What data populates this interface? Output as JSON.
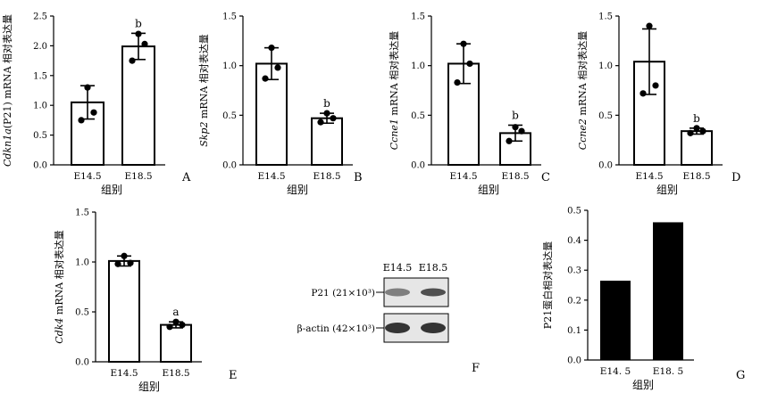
{
  "colors": {
    "ink": "#000000",
    "bar_fill": "#ffffff",
    "solid_bar": "#000000",
    "blot": "#2a2a2a"
  },
  "panels": [
    {
      "letter": "A",
      "type": "bar",
      "ylabel_italic": "Cdkn1a",
      "ylabel_rest": "(P21) mRNA 相对表达量",
      "xlabel": "组别",
      "ylim": [
        0,
        2.5
      ],
      "yticks": [
        "0.0",
        "0.5",
        "1.0",
        "1.5",
        "2.0",
        "2.5"
      ],
      "yticks_values": [
        0,
        0.5,
        1.0,
        1.5,
        2.0,
        2.5
      ],
      "categories": [
        "E14.5",
        "E18.5"
      ],
      "values": [
        1.05,
        1.99
      ],
      "errors": [
        0.28,
        0.22
      ],
      "points": [
        [
          1.3,
          0.75,
          0.88
        ],
        [
          2.2,
          1.75,
          2.03
        ]
      ],
      "sig": [
        "",
        "b"
      ]
    },
    {
      "letter": "B",
      "type": "bar",
      "ylabel_italic": "Skp2",
      "ylabel_rest": " mRNA 相对表达量",
      "xlabel": "组别",
      "ylim": [
        0,
        1.5
      ],
      "yticks": [
        "0.0",
        "0.5",
        "1.0",
        "1.5"
      ],
      "yticks_values": [
        0,
        0.5,
        1.0,
        1.5
      ],
      "categories": [
        "E14.5",
        "E18.5"
      ],
      "values": [
        1.02,
        0.47
      ],
      "errors": [
        0.16,
        0.05
      ],
      "points": [
        [
          1.18,
          0.87,
          0.98
        ],
        [
          0.52,
          0.43,
          0.47
        ]
      ],
      "sig": [
        "",
        "b"
      ]
    },
    {
      "letter": "C",
      "type": "bar",
      "ylabel_italic": "Ccne1",
      "ylabel_rest": " mRNA 相对表达量",
      "xlabel": "组别",
      "ylim": [
        0,
        1.5
      ],
      "yticks": [
        "0.0",
        "0.5",
        "1.0",
        "1.5"
      ],
      "yticks_values": [
        0,
        0.5,
        1.0,
        1.5
      ],
      "categories": [
        "E14.5",
        "E18.5"
      ],
      "values": [
        1.02,
        0.32
      ],
      "errors": [
        0.2,
        0.08
      ],
      "points": [
        [
          1.22,
          0.83,
          1.02
        ],
        [
          0.38,
          0.24,
          0.34
        ]
      ],
      "sig": [
        "",
        "b"
      ]
    },
    {
      "letter": "D",
      "type": "bar",
      "ylabel_italic": "Ccne2",
      "ylabel_rest": " mRNA 相对表达量",
      "xlabel": "组别",
      "ylim": [
        0,
        1.5
      ],
      "yticks": [
        "0.0",
        "0.5",
        "1.0",
        "1.5"
      ],
      "yticks_values": [
        0,
        0.5,
        1.0,
        1.5
      ],
      "categories": [
        "E14.5",
        "E18.5"
      ],
      "values": [
        1.04,
        0.34
      ],
      "errors": [
        0.33,
        0.03
      ],
      "points": [
        [
          1.4,
          0.72,
          0.8
        ],
        [
          0.37,
          0.32,
          0.34
        ]
      ],
      "sig": [
        "",
        "b"
      ]
    },
    {
      "letter": "E",
      "type": "bar",
      "ylabel_italic": "Cdk4",
      "ylabel_rest": " mRNA 相对表达量",
      "xlabel": "组别",
      "ylim": [
        0,
        1.5
      ],
      "yticks": [
        "0.0",
        "0.5",
        "1.0",
        "1.5"
      ],
      "yticks_values": [
        0,
        0.5,
        1.0,
        1.5
      ],
      "categories": [
        "E14.5",
        "E18.5"
      ],
      "values": [
        1.01,
        0.37
      ],
      "errors": [
        0.05,
        0.03
      ],
      "points": [
        [
          1.06,
          0.98,
          0.99
        ],
        [
          0.4,
          0.35,
          0.37
        ]
      ],
      "sig": [
        "",
        "a"
      ]
    },
    {
      "letter": "F",
      "type": "blot",
      "lanes": [
        "E14.5",
        "E18.5"
      ],
      "rows": [
        "P21 (21×10³)",
        "β-actin (42×10³)"
      ]
    },
    {
      "letter": "G",
      "type": "bar",
      "solid": true,
      "ylabel_italic": "",
      "ylabel_rest": "P21蛋白相对表达量",
      "xlabel": "组别",
      "ylim": [
        0,
        0.5
      ],
      "yticks": [
        "0.0",
        "0.1",
        "0.2",
        "0.3",
        "0.4",
        "0.5"
      ],
      "yticks_values": [
        0,
        0.1,
        0.2,
        0.3,
        0.4,
        0.5
      ],
      "categories": [
        "E14. 5",
        "E18. 5"
      ],
      "values": [
        0.265,
        0.46
      ],
      "errors": [],
      "points": [],
      "sig": [
        "",
        ""
      ]
    }
  ],
  "chart_data": [
    {
      "type": "bar",
      "categories": [
        "E14.5",
        "E18.5"
      ],
      "values": [
        1.05,
        1.99
      ],
      "ylabel": "Cdkn1a(P21) mRNA 相对表达量",
      "xlabel": "组别",
      "ylim": [
        0,
        2.5
      ]
    },
    {
      "type": "bar",
      "categories": [
        "E14.5",
        "E18.5"
      ],
      "values": [
        1.02,
        0.47
      ],
      "ylabel": "Skp2 mRNA 相对表达量",
      "xlabel": "组别",
      "ylim": [
        0,
        1.5
      ]
    },
    {
      "type": "bar",
      "categories": [
        "E14.5",
        "E18.5"
      ],
      "values": [
        1.02,
        0.32
      ],
      "ylabel": "Ccne1 mRNA 相对表达量",
      "xlabel": "组别",
      "ylim": [
        0,
        1.5
      ]
    },
    {
      "type": "bar",
      "categories": [
        "E14.5",
        "E18.5"
      ],
      "values": [
        1.04,
        0.34
      ],
      "ylabel": "Ccne2 mRNA 相对表达量",
      "xlabel": "组别",
      "ylim": [
        0,
        1.5
      ]
    },
    {
      "type": "bar",
      "categories": [
        "E14.5",
        "E18.5"
      ],
      "values": [
        1.01,
        0.37
      ],
      "ylabel": "Cdk4 mRNA 相对表达量",
      "xlabel": "组别",
      "ylim": [
        0,
        1.5
      ]
    },
    {
      "type": "bar",
      "categories": [
        "E14. 5",
        "E18. 5"
      ],
      "values": [
        0.265,
        0.46
      ],
      "ylabel": "P21蛋白相对表达量",
      "xlabel": "组别",
      "ylim": [
        0,
        0.5
      ]
    }
  ]
}
